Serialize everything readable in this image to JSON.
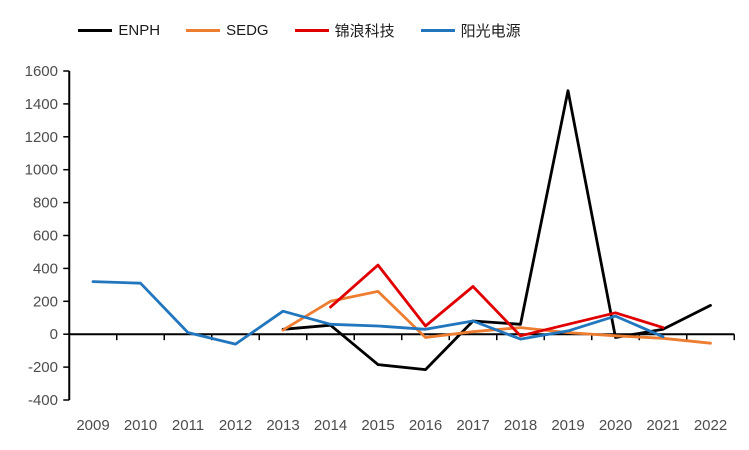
{
  "chart_data": {
    "type": "line",
    "title": "",
    "xlabel": "",
    "ylabel": "",
    "legend_position": "top",
    "grid": false,
    "ylim": [
      -400,
      1600
    ],
    "ytick_step": 200,
    "y_ticks": [
      1600,
      1400,
      1200,
      1000,
      800,
      600,
      400,
      200,
      0,
      -200,
      -400
    ],
    "x": [
      "2009",
      "2010",
      "2011",
      "2012",
      "2013",
      "2014",
      "2015",
      "2016",
      "2017",
      "2018",
      "2019",
      "2020",
      "2021",
      "2022"
    ],
    "series": [
      {
        "name": "ENPH",
        "color": "#000000",
        "values": [
          null,
          null,
          null,
          null,
          30,
          55,
          -185,
          -215,
          80,
          60,
          1480,
          -20,
          30,
          175
        ]
      },
      {
        "name": "SEDG",
        "color": "#ED7D31",
        "values": [
          null,
          null,
          null,
          null,
          25,
          200,
          260,
          -20,
          15,
          40,
          10,
          -10,
          -25,
          -55
        ]
      },
      {
        "name": "锦浪科技",
        "color": "#E00000",
        "values": [
          null,
          null,
          null,
          null,
          null,
          165,
          420,
          50,
          290,
          -10,
          60,
          130,
          40,
          null
        ]
      },
      {
        "name": "阳光电源",
        "color": "#2176BD",
        "values": [
          320,
          310,
          10,
          -60,
          140,
          60,
          50,
          30,
          80,
          -30,
          20,
          110,
          -15,
          null
        ]
      }
    ]
  }
}
